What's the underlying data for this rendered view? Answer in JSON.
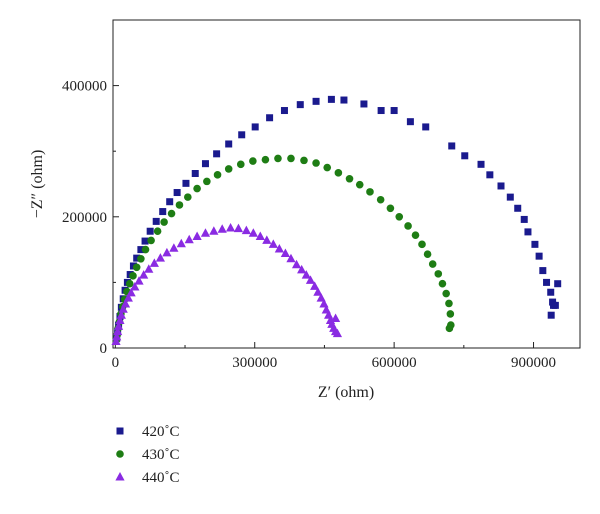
{
  "chart_data": {
    "type": "scatter",
    "title": "",
    "xlabel": "Z′ (ohm)",
    "ylabel": "−Z″ (ohm)",
    "xlim": [
      -5000,
      1000000
    ],
    "ylim": [
      0,
      500000
    ],
    "xticks": [
      0,
      300000,
      600000,
      900000
    ],
    "xtick_labels": [
      "0",
      "300000",
      "600000",
      "900000"
    ],
    "yticks": [
      0,
      200000,
      400000
    ],
    "ytick_labels": [
      "0",
      "200000",
      "400000"
    ],
    "grid": false,
    "legend_position": "bottom-left, below plot",
    "series": [
      {
        "name": "420˚C",
        "marker": "square",
        "color": "#1a1a8e",
        "points": [
          [
            3000,
            15000
          ],
          [
            5000,
            25000
          ],
          [
            7000,
            35000
          ],
          [
            10000,
            48000
          ],
          [
            13000,
            62000
          ],
          [
            17000,
            75000
          ],
          [
            21000,
            88000
          ],
          [
            26000,
            100000
          ],
          [
            32000,
            112000
          ],
          [
            39000,
            125000
          ],
          [
            46000,
            137000
          ],
          [
            55000,
            150000
          ],
          [
            64000,
            163000
          ],
          [
            75000,
            178000
          ],
          [
            88000,
            193000
          ],
          [
            102000,
            208000
          ],
          [
            117000,
            223000
          ],
          [
            133000,
            237000
          ],
          [
            152000,
            251000
          ],
          [
            172000,
            266000
          ],
          [
            194000,
            281000
          ],
          [
            218000,
            296000
          ],
          [
            244000,
            311000
          ],
          [
            272000,
            325000
          ],
          [
            301000,
            337000
          ],
          [
            332000,
            351000
          ],
          [
            364000,
            362000
          ],
          [
            398000,
            371000
          ],
          [
            432000,
            376000
          ],
          [
            465000,
            379000
          ],
          [
            492000,
            378000
          ],
          [
            535000,
            372000
          ],
          [
            572000,
            362000
          ],
          [
            600000,
            362000
          ],
          [
            635000,
            345000
          ],
          [
            668000,
            337000
          ],
          [
            724000,
            308000
          ],
          [
            752000,
            293000
          ],
          [
            787000,
            280000
          ],
          [
            806000,
            264000
          ],
          [
            830000,
            247000
          ],
          [
            850000,
            230000
          ],
          [
            866000,
            213000
          ],
          [
            880000,
            196000
          ],
          [
            888000,
            177000
          ],
          [
            903000,
            158000
          ],
          [
            912000,
            140000
          ],
          [
            920000,
            118000
          ],
          [
            928000,
            100000
          ],
          [
            937000,
            85000
          ],
          [
            941000,
            70000
          ],
          [
            943000,
            65000
          ],
          [
            947000,
            65000
          ],
          [
            952000,
            98000
          ],
          [
            938000,
            50000
          ]
        ]
      },
      {
        "name": "430˚C",
        "marker": "circle",
        "color": "#1e7d14",
        "points": [
          [
            2000,
            12000
          ],
          [
            4000,
            20000
          ],
          [
            6000,
            30000
          ],
          [
            9000,
            40000
          ],
          [
            12000,
            52000
          ],
          [
            16000,
            63000
          ],
          [
            20000,
            74000
          ],
          [
            25000,
            86000
          ],
          [
            31000,
            98000
          ],
          [
            38000,
            110000
          ],
          [
            46000,
            123000
          ],
          [
            55000,
            136000
          ],
          [
            65000,
            150000
          ],
          [
            77000,
            164000
          ],
          [
            91000,
            178000
          ],
          [
            105000,
            192000
          ],
          [
            121000,
            205000
          ],
          [
            138000,
            218000
          ],
          [
            156000,
            230000
          ],
          [
            176000,
            243000
          ],
          [
            197000,
            254000
          ],
          [
            220000,
            264000
          ],
          [
            244000,
            273000
          ],
          [
            270000,
            280000
          ],
          [
            296000,
            285000
          ],
          [
            323000,
            287000
          ],
          [
            350000,
            289000
          ],
          [
            378000,
            289000
          ],
          [
            406000,
            286000
          ],
          [
            432000,
            282000
          ],
          [
            456000,
            275000
          ],
          [
            480000,
            267000
          ],
          [
            504000,
            258000
          ],
          [
            526000,
            249000
          ],
          [
            548000,
            238000
          ],
          [
            571000,
            226000
          ],
          [
            592000,
            213000
          ],
          [
            611000,
            200000
          ],
          [
            630000,
            186000
          ],
          [
            646000,
            172000
          ],
          [
            660000,
            158000
          ],
          [
            672000,
            143000
          ],
          [
            683000,
            128000
          ],
          [
            695000,
            113000
          ],
          [
            704000,
            98000
          ],
          [
            712000,
            83000
          ],
          [
            718000,
            68000
          ],
          [
            721000,
            52000
          ],
          [
            722000,
            35000
          ],
          [
            719000,
            30000
          ]
        ]
      },
      {
        "name": "440˚C",
        "marker": "triangle",
        "color": "#8a2be2",
        "points": [
          [
            1500,
            10000
          ],
          [
            3000,
            17000
          ],
          [
            5000,
            25000
          ],
          [
            7000,
            33000
          ],
          [
            10000,
            42000
          ],
          [
            13000,
            50000
          ],
          [
            17000,
            59000
          ],
          [
            22000,
            67000
          ],
          [
            28000,
            76000
          ],
          [
            34000,
            84000
          ],
          [
            42000,
            93000
          ],
          [
            51000,
            102000
          ],
          [
            61000,
            111000
          ],
          [
            72000,
            120000
          ],
          [
            84000,
            129000
          ],
          [
            97000,
            137000
          ],
          [
            111000,
            145000
          ],
          [
            126000,
            152000
          ],
          [
            142000,
            159000
          ],
          [
            159000,
            165000
          ],
          [
            176000,
            170000
          ],
          [
            194000,
            175000
          ],
          [
            212000,
            178000
          ],
          [
            230000,
            181000
          ],
          [
            248000,
            183000
          ],
          [
            265000,
            182000
          ],
          [
            282000,
            179000
          ],
          [
            297000,
            175000
          ],
          [
            312000,
            170000
          ],
          [
            326000,
            164000
          ],
          [
            340000,
            158000
          ],
          [
            353000,
            151000
          ],
          [
            366000,
            144000
          ],
          [
            378000,
            136000
          ],
          [
            390000,
            127000
          ],
          [
            401000,
            119000
          ],
          [
            411000,
            111000
          ],
          [
            420000,
            103000
          ],
          [
            429000,
            94000
          ],
          [
            436000,
            85000
          ],
          [
            443000,
            76000
          ],
          [
            449000,
            67000
          ],
          [
            454000,
            58000
          ],
          [
            459000,
            50000
          ],
          [
            463000,
            42000
          ],
          [
            466000,
            36000
          ],
          [
            470000,
            30000
          ],
          [
            474000,
            25000
          ],
          [
            478000,
            22000
          ],
          [
            474000,
            45000
          ]
        ]
      }
    ]
  }
}
